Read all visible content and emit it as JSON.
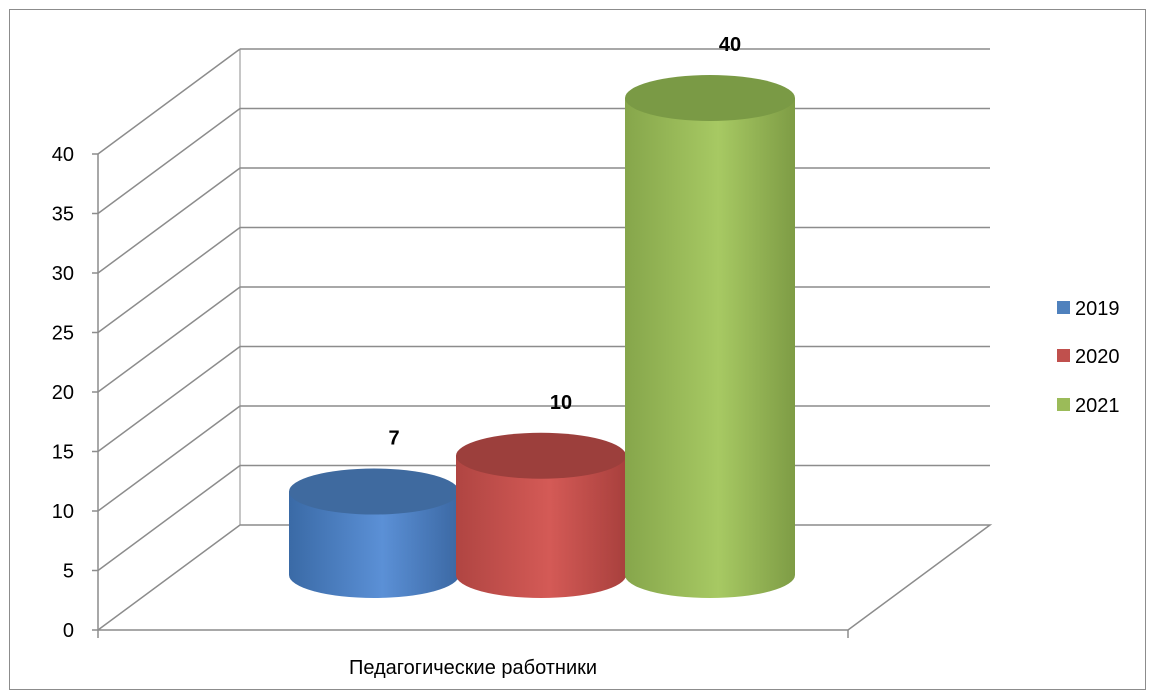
{
  "chart_data": {
    "type": "bar",
    "style": "3d-cylinder",
    "categories": [
      "Педагогические работники"
    ],
    "series": [
      {
        "name": "2019",
        "values": [
          7
        ],
        "color": "#4f81bd"
      },
      {
        "name": "2020",
        "values": [
          10
        ],
        "color": "#c0504d"
      },
      {
        "name": "2021",
        "values": [
          40
        ],
        "color": "#9bbb59"
      }
    ],
    "y_ticks": [
      "0",
      "5",
      "10",
      "15",
      "20",
      "25",
      "30",
      "35",
      "40"
    ],
    "ylim": [
      0,
      40
    ],
    "grid": true,
    "legend_position": "right",
    "data_labels": [
      "7",
      "10",
      "40"
    ]
  }
}
